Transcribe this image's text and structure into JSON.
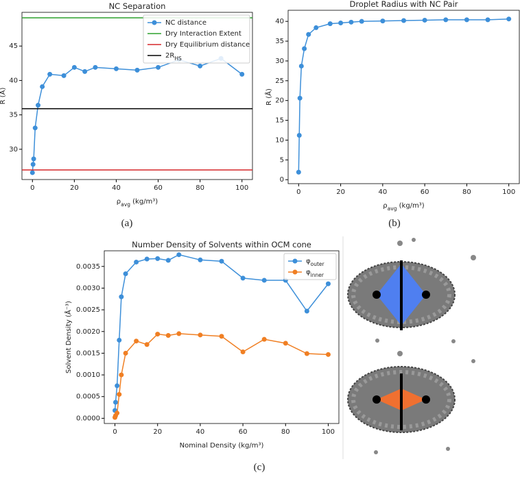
{
  "chart_data": [
    {
      "type": "line",
      "title": "NC Separation",
      "xlabel": "ρ_{avg} (kg/m³)",
      "ylabel": "R (Å)",
      "caption": "(a)",
      "x": [
        0,
        0.3,
        0.6,
        1.3,
        2.7,
        4.7,
        8.3,
        15,
        20,
        25,
        30,
        40,
        50,
        60,
        70,
        80,
        90,
        100
      ],
      "series": [
        {
          "name": "NC distance",
          "color": "#3d8fd9",
          "values": [
            26.6,
            27.8,
            28.6,
            33.1,
            36.4,
            39.1,
            40.9,
            40.7,
            41.9,
            41.3,
            41.9,
            41.7,
            41.5,
            41.9,
            43.0,
            42.1,
            43.2,
            40.9
          ]
        }
      ],
      "hlines": [
        {
          "name": "Dry Interaction Extent",
          "color": "#2ca02c",
          "value": 49.1
        },
        {
          "name": "Dry Equilibrium distance",
          "color": "#d62728",
          "value": 27.0
        },
        {
          "name": "2R_{HS}",
          "color": "#000000",
          "value": 35.9
        }
      ],
      "xlim": [
        -5,
        105
      ],
      "ylim": [
        25.6,
        49.9
      ],
      "xticks": [
        0,
        20,
        40,
        60,
        80,
        100
      ],
      "yticks": [
        30,
        35,
        40,
        45
      ],
      "legend": "upper right"
    },
    {
      "type": "line",
      "title": "Droplet Radius with NC Pair",
      "xlabel": "ρ_{avg} (kg/m³)",
      "ylabel": "R (Å)",
      "caption": "(b)",
      "x": [
        0,
        0.3,
        0.6,
        1.3,
        2.7,
        4.7,
        8.3,
        15,
        20,
        25,
        30,
        40,
        50,
        60,
        70,
        80,
        90,
        100
      ],
      "series": [
        {
          "name": "Droplet radius",
          "color": "#3d8fd9",
          "values": [
            1.9,
            11.2,
            20.6,
            28.7,
            33.1,
            36.7,
            38.4,
            39.4,
            39.6,
            39.8,
            40.0,
            40.1,
            40.2,
            40.3,
            40.4,
            40.4,
            40.4,
            40.6
          ]
        }
      ],
      "xlim": [
        -5,
        105
      ],
      "ylim": [
        -1,
        42.8
      ],
      "xticks": [
        0,
        20,
        40,
        60,
        80,
        100
      ],
      "yticks": [
        0,
        5,
        10,
        15,
        20,
        25,
        30,
        35,
        40
      ]
    },
    {
      "type": "line",
      "title": "Number Density of Solvents within OCM cone",
      "xlabel": "Nominal Density (kg/m³)",
      "ylabel": "Solvent Density (Å⁻³)",
      "caption": "(c)",
      "x": [
        0,
        0.3,
        1,
        2,
        3,
        5,
        10,
        15,
        20,
        25,
        30,
        40,
        50,
        60,
        70,
        80,
        90,
        100
      ],
      "series": [
        {
          "name": "φ_{outer}",
          "color": "#3d8fd9",
          "values": [
            0.00018,
            0.00037,
            0.00075,
            0.0018,
            0.0028,
            0.00333,
            0.0036,
            0.00367,
            0.00368,
            0.00364,
            0.00377,
            0.00365,
            0.00362,
            0.00323,
            0.00318,
            0.00318,
            0.00247,
            0.0031
          ]
        },
        {
          "name": "φ_{inner}",
          "color": "#f07f23",
          "values": [
            2e-05,
            6e-05,
            0.00012,
            0.00055,
            0.001,
            0.0015,
            0.00178,
            0.0017,
            0.00194,
            0.00191,
            0.00195,
            0.00192,
            0.00189,
            0.00153,
            0.00182,
            0.00173,
            0.00149,
            0.00147
          ]
        }
      ],
      "xlim": [
        -5,
        105
      ],
      "ylim": [
        -0.00012,
        0.00386
      ],
      "xticks": [
        0,
        20,
        40,
        60,
        80,
        100
      ],
      "yticks": [
        {
          "value": 0,
          "label": "0.0000"
        },
        {
          "value": 0.0005,
          "label": "0.0005"
        },
        {
          "value": 0.001,
          "label": "0.0010"
        },
        {
          "value": 0.0015,
          "label": "0.0015"
        },
        {
          "value": 0.002,
          "label": "0.0020"
        },
        {
          "value": 0.0025,
          "label": "0.0025"
        },
        {
          "value": 0.003,
          "label": "0.0030"
        },
        {
          "value": 0.0035,
          "label": "0.0035"
        }
      ],
      "legend": "upper right"
    }
  ]
}
